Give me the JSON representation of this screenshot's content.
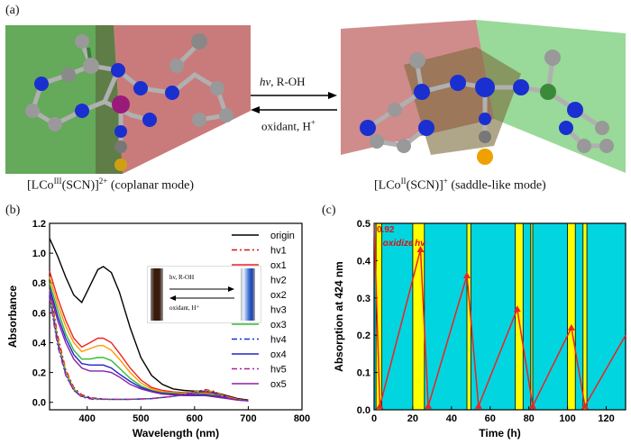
{
  "panel_a": {
    "label": "(a)",
    "left_caption_pre": "[LCo",
    "left_caption_sup1": "III",
    "left_caption_mid": "(SCN)]",
    "left_caption_sup2": "2+",
    "left_caption_post": " (coplanar mode)",
    "right_caption_pre": "[LCo",
    "right_caption_sup1": "II",
    "right_caption_mid": "(SCN)]",
    "right_caption_sup2": "+",
    "right_caption_post": " (saddle-like  mode)",
    "forward_arrow_italic": "hv",
    "forward_arrow_rest": ", R-OH",
    "backward_arrow_text": "oxidant,  H",
    "backward_arrow_sup": "+"
  },
  "panel_b": {
    "label": "(b)",
    "inset_forward": "hv, R-OH",
    "inset_backward": "oxidant,  H⁺"
  },
  "panel_c": {
    "label": "(c)",
    "peak_annotation": "0.92",
    "oxidize_label": "oxidize",
    "hv_label": "hv"
  },
  "colors": {
    "cyan": "#00d5e0",
    "yellow": "#ffff00",
    "red_line": "#ee2222"
  },
  "chart_data": [
    {
      "type": "line",
      "title": "",
      "xlabel": "Wavelength (nm)",
      "ylabel": "Absorbance",
      "xlim": [
        330,
        800
      ],
      "ylim": [
        -0.05,
        1.2
      ],
      "xticks": [
        400,
        500,
        600,
        700,
        800
      ],
      "yticks": [
        0.0,
        0.2,
        0.4,
        0.6,
        0.8,
        1.0,
        1.2
      ],
      "series": [
        {
          "name": "origin",
          "color": "#000000",
          "dash": "",
          "x": [
            330,
            345,
            360,
            375,
            390,
            405,
            420,
            430,
            445,
            460,
            480,
            500,
            520,
            540,
            560,
            580,
            600,
            620,
            640,
            660,
            680,
            700
          ],
          "y": [
            1.1,
            0.98,
            0.84,
            0.72,
            0.67,
            0.78,
            0.89,
            0.91,
            0.87,
            0.74,
            0.5,
            0.3,
            0.18,
            0.12,
            0.09,
            0.08,
            0.075,
            0.075,
            0.065,
            0.045,
            0.025,
            0.015
          ]
        },
        {
          "name": "hv1",
          "color": "#dd1111",
          "dash": "6,3,2,3",
          "x": [
            330,
            345,
            360,
            375,
            390,
            410,
            440,
            480,
            520,
            560,
            600,
            620,
            635,
            650,
            670,
            700
          ],
          "y": [
            0.78,
            0.45,
            0.22,
            0.1,
            0.05,
            0.03,
            0.02,
            0.02,
            0.025,
            0.04,
            0.07,
            0.085,
            0.075,
            0.05,
            0.025,
            0.01
          ]
        },
        {
          "name": "ox1",
          "color": "#ee2222",
          "dash": "",
          "x": [
            330,
            345,
            360,
            375,
            390,
            405,
            420,
            430,
            445,
            460,
            480,
            500,
            520,
            540,
            560,
            580,
            600,
            620,
            640,
            660,
            680,
            700
          ],
          "y": [
            0.88,
            0.7,
            0.55,
            0.43,
            0.37,
            0.4,
            0.43,
            0.43,
            0.4,
            0.33,
            0.23,
            0.15,
            0.1,
            0.08,
            0.07,
            0.065,
            0.065,
            0.065,
            0.055,
            0.04,
            0.02,
            0.01
          ]
        },
        {
          "name": "hv2",
          "color": "#ff8800",
          "dash": "6,3,2,3",
          "x": [
            330,
            345,
            360,
            375,
            390,
            410,
            440,
            480,
            520,
            560,
            600,
            620,
            635,
            650,
            670,
            700
          ],
          "y": [
            0.76,
            0.43,
            0.21,
            0.09,
            0.04,
            0.025,
            0.02,
            0.02,
            0.025,
            0.04,
            0.07,
            0.08,
            0.07,
            0.05,
            0.025,
            0.01
          ]
        },
        {
          "name": "ox2",
          "color": "#ff9900",
          "dash": "",
          "x": [
            330,
            345,
            360,
            375,
            390,
            405,
            420,
            430,
            445,
            460,
            480,
            500,
            520,
            540,
            560,
            580,
            600,
            620,
            640,
            660,
            680,
            700
          ],
          "y": [
            0.84,
            0.66,
            0.51,
            0.4,
            0.34,
            0.36,
            0.38,
            0.38,
            0.35,
            0.29,
            0.2,
            0.13,
            0.09,
            0.07,
            0.065,
            0.06,
            0.06,
            0.06,
            0.05,
            0.035,
            0.02,
            0.01
          ]
        },
        {
          "name": "hv3",
          "color": "#33cc33",
          "dash": "6,3,2,3",
          "x": [
            330,
            345,
            360,
            375,
            390,
            410,
            440,
            480,
            520,
            560,
            600,
            620,
            635,
            650,
            670,
            700
          ],
          "y": [
            0.74,
            0.41,
            0.2,
            0.09,
            0.04,
            0.025,
            0.02,
            0.02,
            0.025,
            0.04,
            0.065,
            0.075,
            0.065,
            0.045,
            0.02,
            0.01
          ]
        },
        {
          "name": "ox3",
          "color": "#33bb33",
          "dash": "",
          "x": [
            330,
            345,
            360,
            375,
            390,
            405,
            420,
            430,
            445,
            460,
            480,
            500,
            520,
            540,
            560,
            580,
            600,
            620,
            640,
            660,
            680,
            700
          ],
          "y": [
            0.8,
            0.62,
            0.46,
            0.35,
            0.29,
            0.29,
            0.3,
            0.3,
            0.28,
            0.23,
            0.16,
            0.11,
            0.08,
            0.065,
            0.06,
            0.055,
            0.055,
            0.055,
            0.045,
            0.03,
            0.015,
            0.01
          ]
        },
        {
          "name": "hv4",
          "color": "#1133dd",
          "dash": "6,3,2,3",
          "x": [
            330,
            345,
            360,
            375,
            390,
            410,
            440,
            480,
            520,
            560,
            600,
            620,
            635,
            650,
            670,
            700
          ],
          "y": [
            0.72,
            0.4,
            0.19,
            0.08,
            0.04,
            0.025,
            0.02,
            0.02,
            0.025,
            0.04,
            0.065,
            0.075,
            0.065,
            0.045,
            0.02,
            0.01
          ]
        },
        {
          "name": "ox4",
          "color": "#2222cc",
          "dash": "",
          "x": [
            330,
            345,
            360,
            375,
            390,
            405,
            420,
            430,
            445,
            460,
            480,
            500,
            520,
            540,
            560,
            580,
            600,
            620,
            640,
            660,
            680,
            700
          ],
          "y": [
            0.77,
            0.58,
            0.43,
            0.32,
            0.26,
            0.25,
            0.25,
            0.25,
            0.23,
            0.19,
            0.14,
            0.1,
            0.075,
            0.06,
            0.055,
            0.05,
            0.05,
            0.05,
            0.04,
            0.03,
            0.015,
            0.01
          ]
        },
        {
          "name": "hv5",
          "color": "#aa2299",
          "dash": "6,3,2,3",
          "x": [
            330,
            345,
            360,
            375,
            390,
            410,
            440,
            480,
            520,
            560,
            600,
            620,
            635,
            650,
            670,
            700
          ],
          "y": [
            0.7,
            0.38,
            0.18,
            0.08,
            0.035,
            0.02,
            0.02,
            0.02,
            0.025,
            0.04,
            0.06,
            0.07,
            0.06,
            0.04,
            0.02,
            0.01
          ]
        },
        {
          "name": "ox5",
          "color": "#8822aa",
          "dash": "",
          "x": [
            330,
            345,
            360,
            375,
            390,
            405,
            420,
            430,
            445,
            460,
            480,
            500,
            520,
            540,
            560,
            580,
            600,
            620,
            640,
            660,
            680,
            700
          ],
          "y": [
            0.74,
            0.55,
            0.4,
            0.29,
            0.23,
            0.21,
            0.21,
            0.21,
            0.2,
            0.17,
            0.12,
            0.09,
            0.07,
            0.055,
            0.05,
            0.045,
            0.045,
            0.045,
            0.035,
            0.025,
            0.015,
            0.01
          ]
        }
      ]
    },
    {
      "type": "line",
      "title": "",
      "xlabel": "Time (h)",
      "ylabel": "Absorption at 424 nm",
      "xlim": [
        0,
        130
      ],
      "ylim": [
        0,
        0.5
      ],
      "xticks": [
        0,
        20,
        40,
        60,
        80,
        100,
        120
      ],
      "yticks": [
        0.0,
        0.1,
        0.2,
        0.3,
        0.4,
        0.5
      ],
      "yellow_bands": [
        [
          1,
          4
        ],
        [
          20,
          26
        ],
        [
          48,
          50
        ],
        [
          73,
          77
        ],
        [
          81,
          82
        ],
        [
          100,
          104
        ],
        [
          108,
          110
        ]
      ],
      "series": [
        {
          "name": "Absorption at 424 nm",
          "x": [
            0,
            3,
            24,
            28,
            48,
            54,
            74,
            82,
            102,
            109,
            130
          ],
          "y": [
            0.92,
            0.01,
            0.43,
            0.01,
            0.36,
            0.01,
            0.27,
            0.01,
            0.22,
            0.01,
            0.2
          ]
        }
      ]
    }
  ]
}
